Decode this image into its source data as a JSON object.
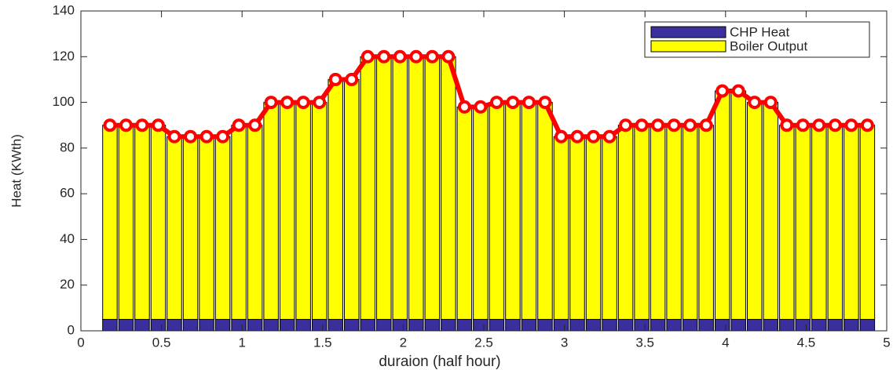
{
  "chart_data": {
    "type": "stacked_bar",
    "xlabel": "duraion (half hour)",
    "ylabel": "Heat (KWth)",
    "x": [
      0.18,
      0.28,
      0.38,
      0.48,
      0.58,
      0.68,
      0.78,
      0.88,
      0.98,
      1.08,
      1.18,
      1.28,
      1.38,
      1.48,
      1.58,
      1.68,
      1.78,
      1.88,
      1.98,
      2.08,
      2.18,
      2.28,
      2.38,
      2.48,
      2.58,
      2.68,
      2.78,
      2.88,
      2.98,
      3.08,
      3.18,
      3.28,
      3.38,
      3.48,
      3.58,
      3.68,
      3.78,
      3.88,
      3.98,
      4.08,
      4.18,
      4.28,
      4.38,
      4.48,
      4.58,
      4.68,
      4.78,
      4.88
    ],
    "series": [
      {
        "name": "CHP Heat",
        "color": "#3b2f9e",
        "values": [
          5,
          5,
          5,
          5,
          5,
          5,
          5,
          5,
          5,
          5,
          5,
          5,
          5,
          5,
          5,
          5,
          5,
          5,
          5,
          5,
          5,
          5,
          5,
          5,
          5,
          5,
          5,
          5,
          5,
          5,
          5,
          5,
          5,
          5,
          5,
          5,
          5,
          5,
          5,
          5,
          5,
          5,
          5,
          5,
          5,
          5,
          5,
          5
        ]
      },
      {
        "name": "Boiler Output",
        "color": "#ffff00",
        "values": [
          85,
          85,
          85,
          85,
          80,
          80,
          80,
          80,
          85,
          85,
          95,
          95,
          95,
          95,
          105,
          105,
          115,
          115,
          115,
          115,
          115,
          115,
          93,
          93,
          95,
          95,
          95,
          95,
          80,
          80,
          80,
          80,
          85,
          85,
          85,
          85,
          85,
          85,
          100,
          100,
          95,
          95,
          85,
          85,
          85,
          85,
          85,
          85
        ]
      }
    ],
    "total_line_color": "#ff0000",
    "xlim": [
      0,
      5
    ],
    "xticks": [
      0,
      0.5,
      1,
      1.5,
      2,
      2.5,
      3,
      3.5,
      4,
      4.5,
      5
    ],
    "ylim": [
      0,
      140
    ],
    "yticks": [
      0,
      20,
      40,
      60,
      80,
      100,
      120,
      140
    ],
    "legend": "upper right"
  }
}
